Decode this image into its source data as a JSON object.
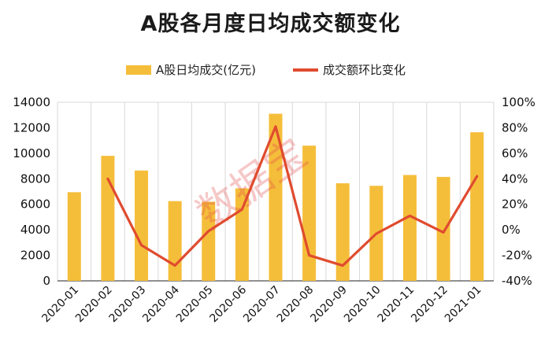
{
  "colors": {
    "bar": "#F5BE3A",
    "line": "#E04B2F",
    "grid": "#d9d9d9",
    "axis": "#222222",
    "watermark": "#E24A4A"
  },
  "chart_data": {
    "type": "bar",
    "title": "A股各月度日均成交额变化",
    "categories": [
      "2020-01",
      "2020-02",
      "2020-03",
      "2020-04",
      "2020-05",
      "2020-06",
      "2020-07",
      "2020-08",
      "2020-09",
      "2020-10",
      "2020-11",
      "2020-12",
      "2021-01"
    ],
    "series": [
      {
        "name": "A股日均成交(亿元)",
        "type": "bar",
        "axis": "left",
        "values": [
          6950,
          9800,
          8650,
          6250,
          6200,
          7250,
          13100,
          10600,
          7650,
          7450,
          8300,
          8150,
          11650
        ]
      },
      {
        "name": "成交额环比变化",
        "type": "line",
        "axis": "right",
        "values": [
          null,
          40,
          -12,
          -28,
          -1,
          16,
          81,
          -20,
          -28,
          -3,
          11,
          -2,
          42
        ]
      }
    ],
    "y_left": {
      "min": 0,
      "max": 14000,
      "ticks": [
        "0",
        "2000",
        "4000",
        "6000",
        "8000",
        "10000",
        "12000",
        "14000"
      ]
    },
    "y_right": {
      "min": -40,
      "max": 100,
      "ticks": [
        "-40%",
        "-20%",
        "0%",
        "20%",
        "40%",
        "60%",
        "80%",
        "100%"
      ]
    },
    "grid": "vertical",
    "legend": "top-center",
    "watermark": "数据宝"
  }
}
